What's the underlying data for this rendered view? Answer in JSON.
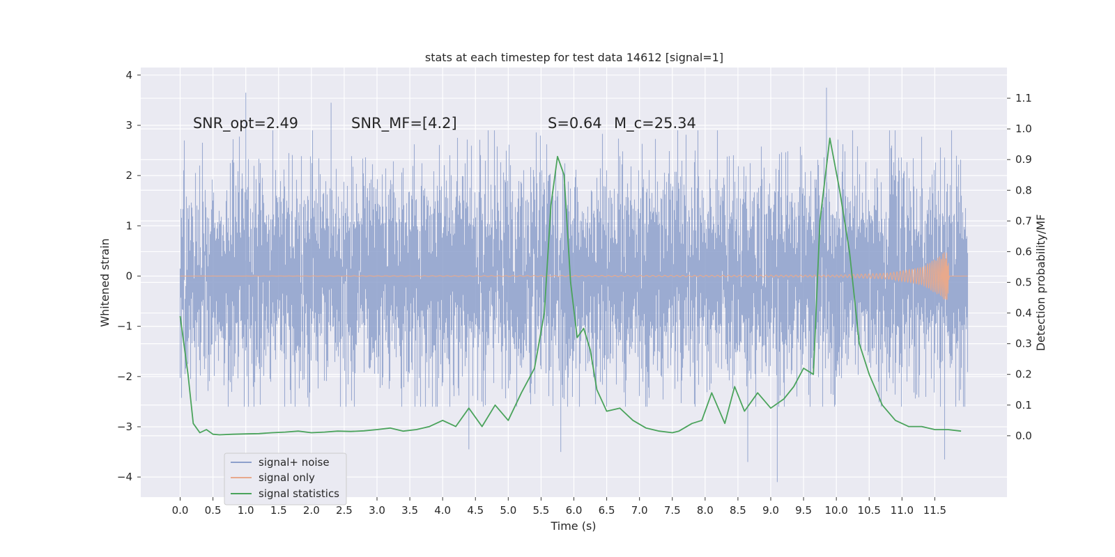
{
  "chart_data": {
    "type": "line",
    "title": "stats at each timestep for test data 14612 [signal=1]",
    "xlabel": "Time (s)",
    "ylabel_left": "Whitened strain",
    "ylabel_right": "Detection probability/MF",
    "xlim": [
      -0.6,
      12.6
    ],
    "ylim_left": [
      -4.4,
      4.15
    ],
    "ylim_right": [
      -0.2,
      1.2
    ],
    "xticks": [
      0.0,
      0.5,
      1.0,
      1.5,
      2.0,
      2.5,
      3.0,
      3.5,
      4.0,
      4.5,
      5.0,
      5.5,
      6.0,
      6.5,
      7.0,
      7.5,
      8.0,
      8.5,
      9.0,
      9.5,
      10.0,
      10.5,
      11.0,
      11.5
    ],
    "xtick_labels": [
      "0.0",
      "0.5",
      "1.0",
      "1.5",
      "2.0",
      "2.5",
      "3.0",
      "3.5",
      "4.0",
      "4.5",
      "5.0",
      "5.5",
      "6.0",
      "6.5",
      "7.0",
      "7.5",
      "8.0",
      "8.5",
      "9.0",
      "9.5",
      "10.0",
      "10.5",
      "11.0",
      "11.5"
    ],
    "yticks_left": [
      -4,
      -3,
      -2,
      -1,
      0,
      1,
      2,
      3,
      4
    ],
    "ytick_labels_left": [
      "−4",
      "−3",
      "−2",
      "−1",
      "0",
      "1",
      "2",
      "3",
      "4"
    ],
    "yticks_right": [
      0.0,
      0.1,
      0.2,
      0.3,
      0.4,
      0.5,
      0.6,
      0.7,
      0.8,
      0.9,
      1.0,
      1.1
    ],
    "ytick_labels_right": [
      "0.0",
      "0.1",
      "0.2",
      "0.3",
      "0.4",
      "0.5",
      "0.6",
      "0.7",
      "0.8",
      "0.9",
      "1.0",
      "1.1"
    ],
    "grid": true,
    "legend_position": "lower-left",
    "annotations": [
      "SNR_opt=2.49",
      "SNR_MF=[4.2]",
      "S=0.64",
      "M_c=25.34"
    ],
    "series": [
      {
        "name": "signal+ noise",
        "color": "#8da0cb",
        "axis": "left",
        "x_range": [
          0.0,
          12.0
        ],
        "mean": 0.0,
        "std": 1.0,
        "typical_max": 2.9,
        "typical_min": -2.6,
        "peaks": [
          [
            1.0,
            3.65
          ],
          [
            2.3,
            3.45
          ],
          [
            9.85,
            3.75
          ],
          [
            9.1,
            -4.1
          ],
          [
            8.65,
            -3.7
          ],
          [
            11.65,
            -3.65
          ],
          [
            4.4,
            -3.45
          ],
          [
            5.8,
            -3.5
          ]
        ]
      },
      {
        "name": "signal only",
        "color": "#e8a98c",
        "axis": "left",
        "x_range": [
          0.0,
          12.0
        ],
        "envelope": [
          [
            0.0,
            0.0
          ],
          [
            10.0,
            0.02
          ],
          [
            10.8,
            0.06
          ],
          [
            11.3,
            0.18
          ],
          [
            11.6,
            0.42
          ],
          [
            11.7,
            0.55
          ],
          [
            11.72,
            0.0
          ]
        ]
      },
      {
        "name": "signal statistics",
        "color": "#4aa35b",
        "axis": "right",
        "x": [
          0.0,
          0.12,
          0.2,
          0.3,
          0.4,
          0.5,
          0.6,
          0.8,
          1.0,
          1.2,
          1.4,
          1.6,
          1.8,
          2.0,
          2.2,
          2.4,
          2.6,
          2.8,
          3.0,
          3.2,
          3.4,
          3.6,
          3.8,
          4.0,
          4.2,
          4.4,
          4.6,
          4.8,
          5.0,
          5.2,
          5.4,
          5.55,
          5.65,
          5.75,
          5.85,
          5.95,
          6.05,
          6.15,
          6.25,
          6.35,
          6.5,
          6.7,
          6.9,
          7.1,
          7.3,
          7.5,
          7.6,
          7.8,
          7.95,
          8.1,
          8.3,
          8.45,
          8.6,
          8.8,
          9.0,
          9.2,
          9.35,
          9.5,
          9.65,
          9.75,
          9.9,
          10.05,
          10.2,
          10.35,
          10.5,
          10.7,
          10.9,
          11.1,
          11.3,
          11.5,
          11.7,
          11.9
        ],
        "y": [
          0.39,
          0.2,
          0.04,
          0.01,
          0.02,
          0.005,
          0.003,
          0.005,
          0.006,
          0.007,
          0.01,
          0.012,
          0.015,
          0.01,
          0.012,
          0.015,
          0.014,
          0.016,
          0.02,
          0.025,
          0.015,
          0.02,
          0.03,
          0.05,
          0.03,
          0.09,
          0.03,
          0.1,
          0.05,
          0.14,
          0.22,
          0.4,
          0.75,
          0.91,
          0.85,
          0.5,
          0.32,
          0.35,
          0.28,
          0.15,
          0.08,
          0.09,
          0.05,
          0.025,
          0.015,
          0.01,
          0.015,
          0.04,
          0.05,
          0.14,
          0.04,
          0.16,
          0.08,
          0.14,
          0.09,
          0.12,
          0.16,
          0.22,
          0.2,
          0.7,
          0.97,
          0.8,
          0.6,
          0.3,
          0.2,
          0.1,
          0.05,
          0.03,
          0.03,
          0.02,
          0.02,
          0.015
        ]
      }
    ]
  }
}
